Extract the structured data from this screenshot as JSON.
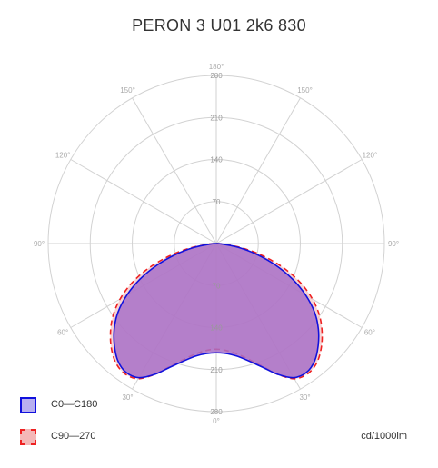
{
  "title": "PERON 3 U01 2k6 830",
  "unit_label": "cd/1000lm",
  "colors": {
    "c0_stroke": "#1111dd",
    "c0_fill": "#a870c8",
    "c90_stroke": "#ee2222",
    "c90_fill": "#f4b8b8",
    "grid": "#d2d2d2"
  },
  "chart_data": {
    "type": "polar",
    "title": "PERON 3 U01 2k6 830",
    "radial_max": 280,
    "radial_ticks": [
      70,
      140,
      210,
      280
    ],
    "radial_tick_labels": [
      "70",
      "140",
      "210",
      "280"
    ],
    "angle_labels": [
      "180°",
      "150°",
      "120°",
      "90°",
      "60°",
      "30°",
      "0°",
      "30°",
      "60°",
      "90°",
      "120°",
      "150°"
    ],
    "unit": "cd/1000lm",
    "series": [
      {
        "name": "C0—C180",
        "style": "solid",
        "angles": [
          0,
          10,
          20,
          25,
          30,
          35,
          40,
          45,
          50,
          55,
          60,
          65,
          70,
          75,
          80,
          85,
          90
        ],
        "values": [
          182,
          190,
          218,
          240,
          258,
          262,
          255,
          240,
          222,
          200,
          172,
          140,
          105,
          70,
          38,
          10,
          0
        ]
      },
      {
        "name": "C90—270",
        "style": "dashed",
        "angles": [
          0,
          10,
          20,
          25,
          30,
          35,
          40,
          45,
          50,
          55,
          60,
          65,
          70,
          75,
          80,
          85,
          90
        ],
        "values": [
          176,
          186,
          216,
          240,
          260,
          265,
          260,
          247,
          230,
          210,
          185,
          155,
          120,
          82,
          46,
          14,
          0
        ]
      }
    ],
    "legend": [
      "C0—C180",
      "C90—270"
    ],
    "legend_position": "bottom-left",
    "grid": true
  }
}
